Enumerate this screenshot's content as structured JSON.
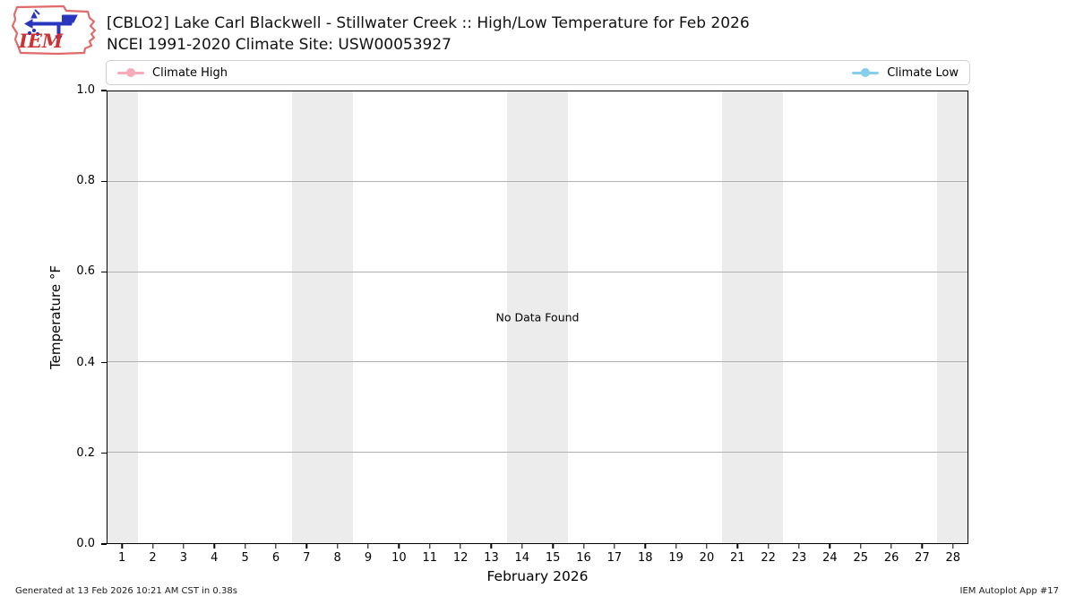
{
  "header": {
    "title_line1": "[CBLO2] Lake Carl Blackwell - Stillwater Creek :: High/Low Temperature for Feb 2026",
    "title_line2": "NCEI 1991-2020 Climate Site: USW00053927",
    "logo_name": "iem-logo"
  },
  "legend": {
    "items": [
      {
        "label": "Climate High",
        "color": "#f7aab9"
      },
      {
        "label": "Climate Low",
        "color": "#87ceeb"
      }
    ]
  },
  "chart_data": {
    "type": "line",
    "title": "[CBLO2] Lake Carl Blackwell - Stillwater Creek :: High/Low Temperature for Feb 2026",
    "subtitle": "NCEI 1991-2020 Climate Site: USW00053927",
    "xlabel": "February 2026",
    "ylabel": "Temperature °F",
    "xlim": [
      0.5,
      28.5
    ],
    "ylim": [
      0.0,
      1.0
    ],
    "yticks": [
      "0.0",
      "0.2",
      "0.4",
      "0.6",
      "0.8",
      "1.0"
    ],
    "xticks": [
      1,
      2,
      3,
      4,
      5,
      6,
      7,
      8,
      9,
      10,
      11,
      12,
      13,
      14,
      15,
      16,
      17,
      18,
      19,
      20,
      21,
      22,
      23,
      24,
      25,
      26,
      27,
      28
    ],
    "series": [
      {
        "name": "Climate High",
        "color": "#f7aab9",
        "x": [],
        "values": []
      },
      {
        "name": "Climate Low",
        "color": "#87ceeb",
        "x": [],
        "values": []
      }
    ],
    "no_data_text": "No Data Found",
    "weekend_bands_days": [
      [
        0.5,
        1.5
      ],
      [
        6.5,
        8.5
      ],
      [
        13.5,
        15.5
      ],
      [
        20.5,
        22.5
      ],
      [
        27.5,
        28.5
      ]
    ],
    "band_color": "#ececec",
    "grid_color": "#b0b0b0",
    "grid": "horizontal-only",
    "legend_position": "top, expanded full width"
  },
  "footer": {
    "left": "Generated at 13 Feb 2026 10:21 AM CST in 0.38s",
    "right": "IEM Autoplot App #17"
  }
}
